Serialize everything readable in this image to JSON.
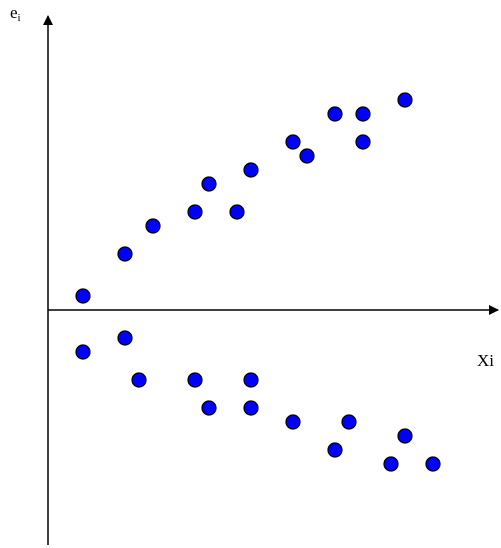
{
  "chart_data": {
    "type": "scatter",
    "title": "",
    "xlabel": "Xi",
    "ylabel": "e",
    "ylabel_subscript": "i",
    "grid": false,
    "legend": "none",
    "xlim": [
      0,
      32
    ],
    "ylim": [
      -16,
      21
    ],
    "colors": {
      "point": "#0000ff",
      "axis": "#000000"
    },
    "series": [
      {
        "points": [
          [
            2.5,
            1.0
          ],
          [
            5.5,
            4.0
          ],
          [
            7.5,
            6.0
          ],
          [
            10.5,
            7.0
          ],
          [
            11.5,
            9.0
          ],
          [
            13.5,
            7.0
          ],
          [
            14.5,
            10.0
          ],
          [
            17.5,
            12.0
          ],
          [
            18.5,
            11.0
          ],
          [
            20.5,
            14.0
          ],
          [
            22.5,
            14.0
          ],
          [
            22.5,
            12.0
          ],
          [
            25.5,
            15.0
          ],
          [
            2.5,
            -3.0
          ],
          [
            5.5,
            -2.0
          ],
          [
            6.5,
            -5.0
          ],
          [
            10.5,
            -5.0
          ],
          [
            14.5,
            -5.0
          ],
          [
            11.5,
            -7.0
          ],
          [
            14.5,
            -7.0
          ],
          [
            17.5,
            -8.0
          ],
          [
            21.5,
            -8.0
          ],
          [
            20.5,
            -10.0
          ],
          [
            25.5,
            -9.0
          ],
          [
            24.5,
            -11.0
          ],
          [
            27.5,
            -11.0
          ]
        ]
      }
    ]
  }
}
